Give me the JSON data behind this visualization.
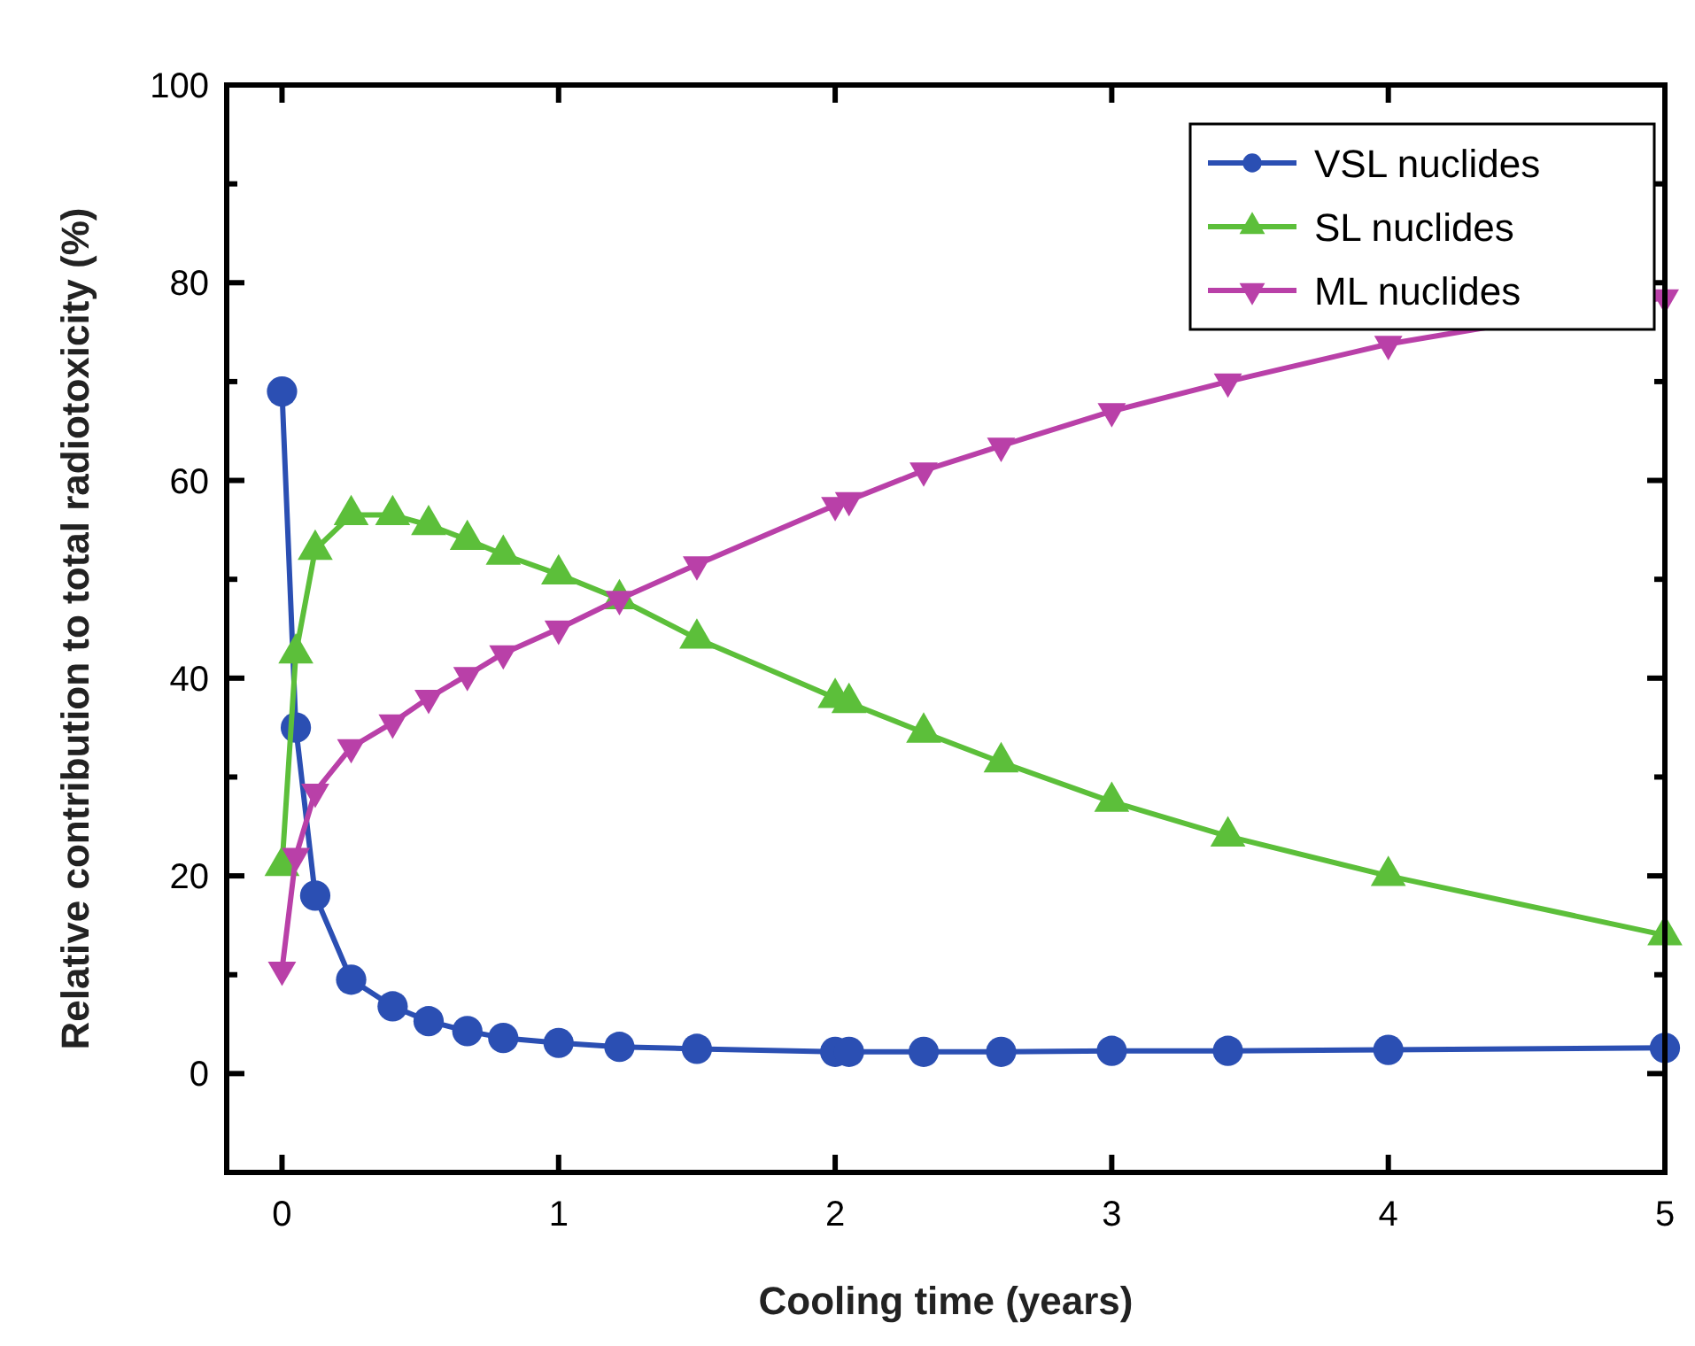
{
  "chart_data": {
    "type": "line",
    "xlabel": "Cooling time (years)",
    "ylabel": "Relative contribution to total radiotoxicity (%)",
    "x": [
      0,
      0.05,
      0.12,
      0.25,
      0.4,
      0.53,
      0.67,
      0.8,
      1.0,
      1.22,
      1.5,
      2.0,
      2.05,
      2.32,
      2.6,
      3.0,
      3.42,
      4.0,
      5.0
    ],
    "series": [
      {
        "name": "VSL nuclides",
        "color": "#2b4fb3",
        "marker": "circle",
        "values": [
          69,
          35,
          18,
          9.5,
          6.8,
          5.3,
          4.3,
          3.6,
          3.1,
          2.7,
          2.5,
          2.2,
          2.2,
          2.2,
          2.2,
          2.3,
          2.3,
          2.4,
          2.6
        ]
      },
      {
        "name": "SL nuclides",
        "color": "#5cbf3a",
        "marker": "triangle",
        "values": [
          21,
          42.5,
          53,
          56.5,
          56.5,
          55.5,
          54,
          52.5,
          50.5,
          48,
          44,
          38,
          37.5,
          34.5,
          31.5,
          27.5,
          24,
          20,
          14
        ]
      },
      {
        "name": "ML nuclides",
        "color": "#b940a8",
        "marker": "triangle-down",
        "values": [
          10.5,
          22,
          28.5,
          33,
          35.5,
          38,
          40.3,
          42.5,
          45,
          48,
          51.5,
          57.5,
          58,
          61,
          63.5,
          67,
          70,
          73.8,
          78.5
        ]
      }
    ],
    "xlim": [
      -0.2,
      5
    ],
    "xticks": [
      0,
      1,
      2,
      3,
      4,
      5
    ],
    "ylim": [
      -10,
      100
    ],
    "yticks": [
      0,
      {
        "value": 10,
        "label": null
      },
      20,
      {
        "value": 30,
        "label": null
      },
      40,
      {
        "value": 50,
        "label": null
      },
      60,
      {
        "value": 70,
        "label": null
      },
      80,
      {
        "value": 90,
        "label": null
      },
      100
    ],
    "grid": false,
    "legend": "top right",
    "line_style": "solid"
  }
}
